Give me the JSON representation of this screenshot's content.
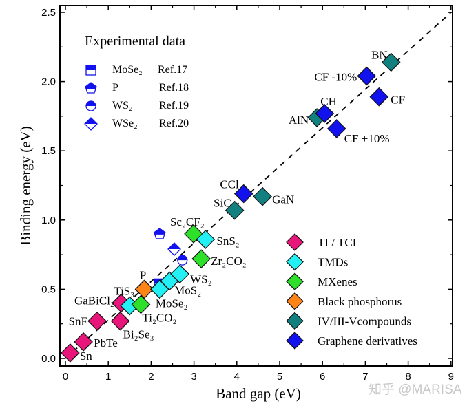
{
  "chart_data": {
    "type": "scatter",
    "xlabel": "Band gap (eV)",
    "ylabel": "Binding energy (eV)",
    "xlim": [
      -0.1,
      9.08
    ],
    "ylim": [
      -0.06,
      2.55
    ],
    "xticks": [
      "0",
      "1",
      "2",
      "3",
      "4",
      "5",
      "6",
      "7",
      "8",
      "9"
    ],
    "yticks": [
      "0.0",
      "0.5",
      "1.0",
      "1.5",
      "2.0",
      "2.5"
    ],
    "grid": false,
    "reference_line": {
      "style": "dashed",
      "from": [
        0,
        0
      ],
      "to": [
        9,
        2.5
      ]
    },
    "categories": [
      {
        "name": "TI / TCI",
        "color": "#e8157a"
      },
      {
        "name": "TMDs",
        "color": "#22f0f4"
      },
      {
        "name": "MXenes",
        "color": "#2ee02a"
      },
      {
        "name": "Black phosphorus",
        "color": "#ff8418"
      },
      {
        "name": "IV/III-Vcompounds",
        "color": "#138080"
      },
      {
        "name": "Graphene derivatives",
        "color": "#1212ee"
      }
    ],
    "legend_placement": "bottom-right",
    "points": [
      {
        "label": "Sn",
        "category": 0,
        "x": 0.11,
        "y": 0.04
      },
      {
        "label": "PbTe",
        "category": 0,
        "x": 0.42,
        "y": 0.12
      },
      {
        "label": "SnF",
        "category": 0,
        "x": 0.74,
        "y": 0.27
      },
      {
        "label": "Bi₂Se₃",
        "category": 0,
        "x": 1.28,
        "y": 0.27
      },
      {
        "label": "GaBiCl₂",
        "category": 0,
        "x": 1.3,
        "y": 0.4
      },
      {
        "label": "TiS₃",
        "category": 1,
        "x": 1.5,
        "y": 0.38
      },
      {
        "label": "Ti₂CO₂",
        "category": 2,
        "x": 1.76,
        "y": 0.39
      },
      {
        "label": "P",
        "category": 3,
        "x": 1.84,
        "y": 0.5
      },
      {
        "label": "MoSe₂",
        "category": 1,
        "x": 2.2,
        "y": 0.5
      },
      {
        "label": "MoS₂",
        "category": 1,
        "x": 2.43,
        "y": 0.56
      },
      {
        "label": "WS₂",
        "category": 1,
        "x": 2.67,
        "y": 0.61
      },
      {
        "label": "Zr₂CO₂",
        "category": 2,
        "x": 3.17,
        "y": 0.72
      },
      {
        "label": "Sc₂CF₂",
        "category": 2,
        "x": 2.99,
        "y": 0.9
      },
      {
        "label": "SnS₂",
        "category": 1,
        "x": 3.27,
        "y": 0.86
      },
      {
        "label": "SiC",
        "category": 4,
        "x": 3.95,
        "y": 1.07
      },
      {
        "label": "GaN",
        "category": 4,
        "x": 4.6,
        "y": 1.17
      },
      {
        "label": "CCl",
        "category": 5,
        "x": 4.16,
        "y": 1.19
      },
      {
        "label": "AlN",
        "category": 4,
        "x": 5.87,
        "y": 1.74
      },
      {
        "label": "CH",
        "category": 5,
        "x": 6.05,
        "y": 1.77
      },
      {
        "label": "CF +10%",
        "category": 5,
        "x": 6.33,
        "y": 1.66
      },
      {
        "label": "CF -10%",
        "category": 5,
        "x": 7.03,
        "y": 2.04
      },
      {
        "label": "CF",
        "category": 5,
        "x": 7.32,
        "y": 1.89
      },
      {
        "label": "BN",
        "category": 4,
        "x": 7.6,
        "y": 2.14
      }
    ],
    "experimental": {
      "title": "Experimental data",
      "color": "#1212ee",
      "entries": [
        {
          "material": "MoSe₂",
          "ref": "Ref.17",
          "marker": "half-filled-square",
          "x": 2.19,
          "y": 0.54
        },
        {
          "material": "P",
          "ref": "Ref.18",
          "marker": "half-filled-pentagon",
          "x": 2.2,
          "y": 0.9
        },
        {
          "material": "WS₂",
          "ref": "Ref.19",
          "marker": "half-filled-circle",
          "x": 2.73,
          "y": 0.71
        },
        {
          "material": "WSe₂",
          "ref": "Ref.20",
          "marker": "half-filled-diamond",
          "x": 2.54,
          "y": 0.79
        }
      ]
    }
  },
  "watermark": "知乎 @MARISA"
}
